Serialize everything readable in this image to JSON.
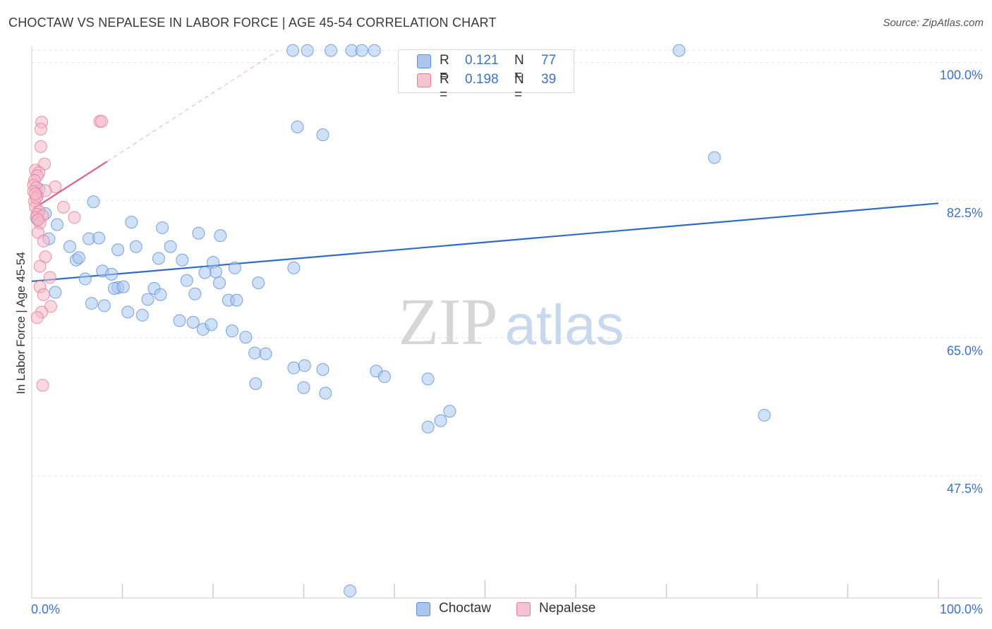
{
  "header": {
    "title": "CHOCTAW VS NEPALESE IN LABOR FORCE | AGE 45-54 CORRELATION CHART",
    "source": "Source: ZipAtlas.com"
  },
  "watermark": {
    "part1": "ZIP",
    "part2": "atlas"
  },
  "colors": {
    "choctaw_fill": "#aac6ef",
    "choctaw_stroke": "#5b8fd6",
    "choctaw_line": "#2f6cc5",
    "nepalese_fill": "#f5b8cb",
    "nepalese_stroke": "#e27c9c",
    "nepalese_line": "#e0608a",
    "axis_label": "#3d73c8",
    "grid": "#e2e2e2"
  },
  "legend_top": {
    "rows": [
      {
        "series": "Choctaw",
        "r_label": "R =",
        "r_value": "0.121",
        "n_label": "N =",
        "n_value": "77"
      },
      {
        "series": "Nepalese",
        "r_label": "R =",
        "r_value": "0.198",
        "n_label": "N =",
        "n_value": "39"
      }
    ]
  },
  "legend_bottom": {
    "items": [
      "Choctaw",
      "Nepalese"
    ]
  },
  "chart_data": {
    "type": "scatter",
    "title": "CHOCTAW VS NEPALESE IN LABOR FORCE | AGE 45-54 CORRELATION CHART",
    "xlabel": "",
    "ylabel": "In Labor Force | Age 45-54",
    "xlim": [
      0,
      100
    ],
    "ylim": [
      32.0,
      102.0
    ],
    "x_tick_labels": [
      "0.0%",
      "100.0%"
    ],
    "y_ticks": [
      {
        "value": 100.0,
        "label": "100.0%"
      },
      {
        "value": 82.5,
        "label": "82.5%"
      },
      {
        "value": 65.0,
        "label": "65.0%"
      },
      {
        "value": 47.5,
        "label": "47.5%"
      }
    ],
    "grid": true,
    "legend_position": "top-center",
    "series": [
      {
        "name": "Choctaw",
        "r": 0.121,
        "n": 77,
        "trend": {
          "x": [
            0,
            100
          ],
          "y": [
            72.2,
            82.1
          ]
        },
        "points": [
          {
            "x": 28.8,
            "y": 101.5
          },
          {
            "x": 30.4,
            "y": 101.5
          },
          {
            "x": 33.0,
            "y": 101.5
          },
          {
            "x": 35.3,
            "y": 101.5
          },
          {
            "x": 36.4,
            "y": 101.5
          },
          {
            "x": 37.8,
            "y": 101.5
          },
          {
            "x": 71.4,
            "y": 101.5
          },
          {
            "x": 29.3,
            "y": 91.8
          },
          {
            "x": 32.1,
            "y": 90.8
          },
          {
            "x": 75.3,
            "y": 87.9
          },
          {
            "x": 0.8,
            "y": 83.9
          },
          {
            "x": 6.8,
            "y": 82.3
          },
          {
            "x": 1.5,
            "y": 80.8
          },
          {
            "x": 0.6,
            "y": 80.1
          },
          {
            "x": 2.8,
            "y": 79.4
          },
          {
            "x": 11.0,
            "y": 79.7
          },
          {
            "x": 14.4,
            "y": 79.0
          },
          {
            "x": 18.4,
            "y": 78.3
          },
          {
            "x": 20.8,
            "y": 78.0
          },
          {
            "x": 4.2,
            "y": 76.6
          },
          {
            "x": 1.9,
            "y": 77.6
          },
          {
            "x": 6.3,
            "y": 77.6
          },
          {
            "x": 7.4,
            "y": 77.7
          },
          {
            "x": 9.5,
            "y": 76.2
          },
          {
            "x": 11.5,
            "y": 76.6
          },
          {
            "x": 15.3,
            "y": 76.6
          },
          {
            "x": 14.0,
            "y": 75.1
          },
          {
            "x": 16.6,
            "y": 74.9
          },
          {
            "x": 20.0,
            "y": 74.6
          },
          {
            "x": 22.4,
            "y": 73.9
          },
          {
            "x": 20.3,
            "y": 73.4
          },
          {
            "x": 28.9,
            "y": 73.9
          },
          {
            "x": 4.9,
            "y": 74.9
          },
          {
            "x": 5.2,
            "y": 75.2
          },
          {
            "x": 7.8,
            "y": 73.5
          },
          {
            "x": 8.8,
            "y": 73.1
          },
          {
            "x": 19.1,
            "y": 73.3
          },
          {
            "x": 17.1,
            "y": 72.3
          },
          {
            "x": 20.7,
            "y": 72.0
          },
          {
            "x": 25.0,
            "y": 72.0
          },
          {
            "x": 5.9,
            "y": 72.5
          },
          {
            "x": 9.5,
            "y": 71.4
          },
          {
            "x": 12.8,
            "y": 69.9
          },
          {
            "x": 9.1,
            "y": 71.3
          },
          {
            "x": 10.1,
            "y": 71.5
          },
          {
            "x": 13.5,
            "y": 71.3
          },
          {
            "x": 14.2,
            "y": 70.5
          },
          {
            "x": 18.0,
            "y": 70.6
          },
          {
            "x": 21.7,
            "y": 69.8
          },
          {
            "x": 22.6,
            "y": 69.8
          },
          {
            "x": 2.6,
            "y": 70.8
          },
          {
            "x": 6.6,
            "y": 69.4
          },
          {
            "x": 8.0,
            "y": 69.1
          },
          {
            "x": 10.6,
            "y": 68.3
          },
          {
            "x": 12.2,
            "y": 67.9
          },
          {
            "x": 16.3,
            "y": 67.2
          },
          {
            "x": 17.8,
            "y": 67.0
          },
          {
            "x": 18.9,
            "y": 66.1
          },
          {
            "x": 19.8,
            "y": 66.7
          },
          {
            "x": 22.1,
            "y": 65.9
          },
          {
            "x": 23.6,
            "y": 65.1
          },
          {
            "x": 24.6,
            "y": 63.1
          },
          {
            "x": 25.8,
            "y": 63.0
          },
          {
            "x": 28.9,
            "y": 61.2
          },
          {
            "x": 30.1,
            "y": 61.5
          },
          {
            "x": 32.1,
            "y": 61.0
          },
          {
            "x": 38.0,
            "y": 60.8
          },
          {
            "x": 38.9,
            "y": 60.1
          },
          {
            "x": 43.7,
            "y": 59.8
          },
          {
            "x": 24.7,
            "y": 59.2
          },
          {
            "x": 30.0,
            "y": 58.7
          },
          {
            "x": 32.4,
            "y": 58.0
          },
          {
            "x": 46.1,
            "y": 55.7
          },
          {
            "x": 80.8,
            "y": 55.2
          },
          {
            "x": 45.1,
            "y": 54.5
          },
          {
            "x": 43.7,
            "y": 53.7
          },
          {
            "x": 35.1,
            "y": 32.9
          }
        ]
      },
      {
        "name": "Nepalese",
        "r": 0.198,
        "n": 39,
        "trend": {
          "x": [
            0.3,
            8.3
          ],
          "y": [
            81.5,
            87.4
          ],
          "dashed_to": {
            "x": 27.2,
            "y": 101.5
          }
        },
        "points": [
          {
            "x": 1.1,
            "y": 92.4
          },
          {
            "x": 7.5,
            "y": 92.5
          },
          {
            "x": 7.7,
            "y": 92.5
          },
          {
            "x": 1.0,
            "y": 91.5
          },
          {
            "x": 1.0,
            "y": 89.3
          },
          {
            "x": 1.4,
            "y": 87.1
          },
          {
            "x": 0.4,
            "y": 86.3
          },
          {
            "x": 0.8,
            "y": 86.0
          },
          {
            "x": 0.6,
            "y": 85.6
          },
          {
            "x": 0.3,
            "y": 85.0
          },
          {
            "x": 0.2,
            "y": 84.4
          },
          {
            "x": 0.5,
            "y": 84.1
          },
          {
            "x": 2.6,
            "y": 84.2
          },
          {
            "x": 1.5,
            "y": 83.7
          },
          {
            "x": 0.2,
            "y": 83.6
          },
          {
            "x": 0.6,
            "y": 83.0
          },
          {
            "x": 0.3,
            "y": 82.4
          },
          {
            "x": 3.5,
            "y": 81.6
          },
          {
            "x": 0.4,
            "y": 81.6
          },
          {
            "x": 0.8,
            "y": 81.1
          },
          {
            "x": 0.6,
            "y": 80.7
          },
          {
            "x": 0.5,
            "y": 80.3
          },
          {
            "x": 1.2,
            "y": 80.5
          },
          {
            "x": 4.7,
            "y": 80.3
          },
          {
            "x": 0.9,
            "y": 79.6
          },
          {
            "x": 0.7,
            "y": 78.4
          },
          {
            "x": 1.3,
            "y": 77.3
          },
          {
            "x": 1.5,
            "y": 75.3
          },
          {
            "x": 0.9,
            "y": 74.1
          },
          {
            "x": 2.0,
            "y": 72.7
          },
          {
            "x": 0.9,
            "y": 71.5
          },
          {
            "x": 1.3,
            "y": 70.5
          },
          {
            "x": 2.1,
            "y": 69.0
          },
          {
            "x": 1.1,
            "y": 68.3
          },
          {
            "x": 0.6,
            "y": 67.6
          },
          {
            "x": 1.2,
            "y": 59.0
          },
          {
            "x": 0.5,
            "y": 82.8
          },
          {
            "x": 0.4,
            "y": 83.3
          },
          {
            "x": 0.7,
            "y": 80.0
          }
        ]
      }
    ]
  }
}
